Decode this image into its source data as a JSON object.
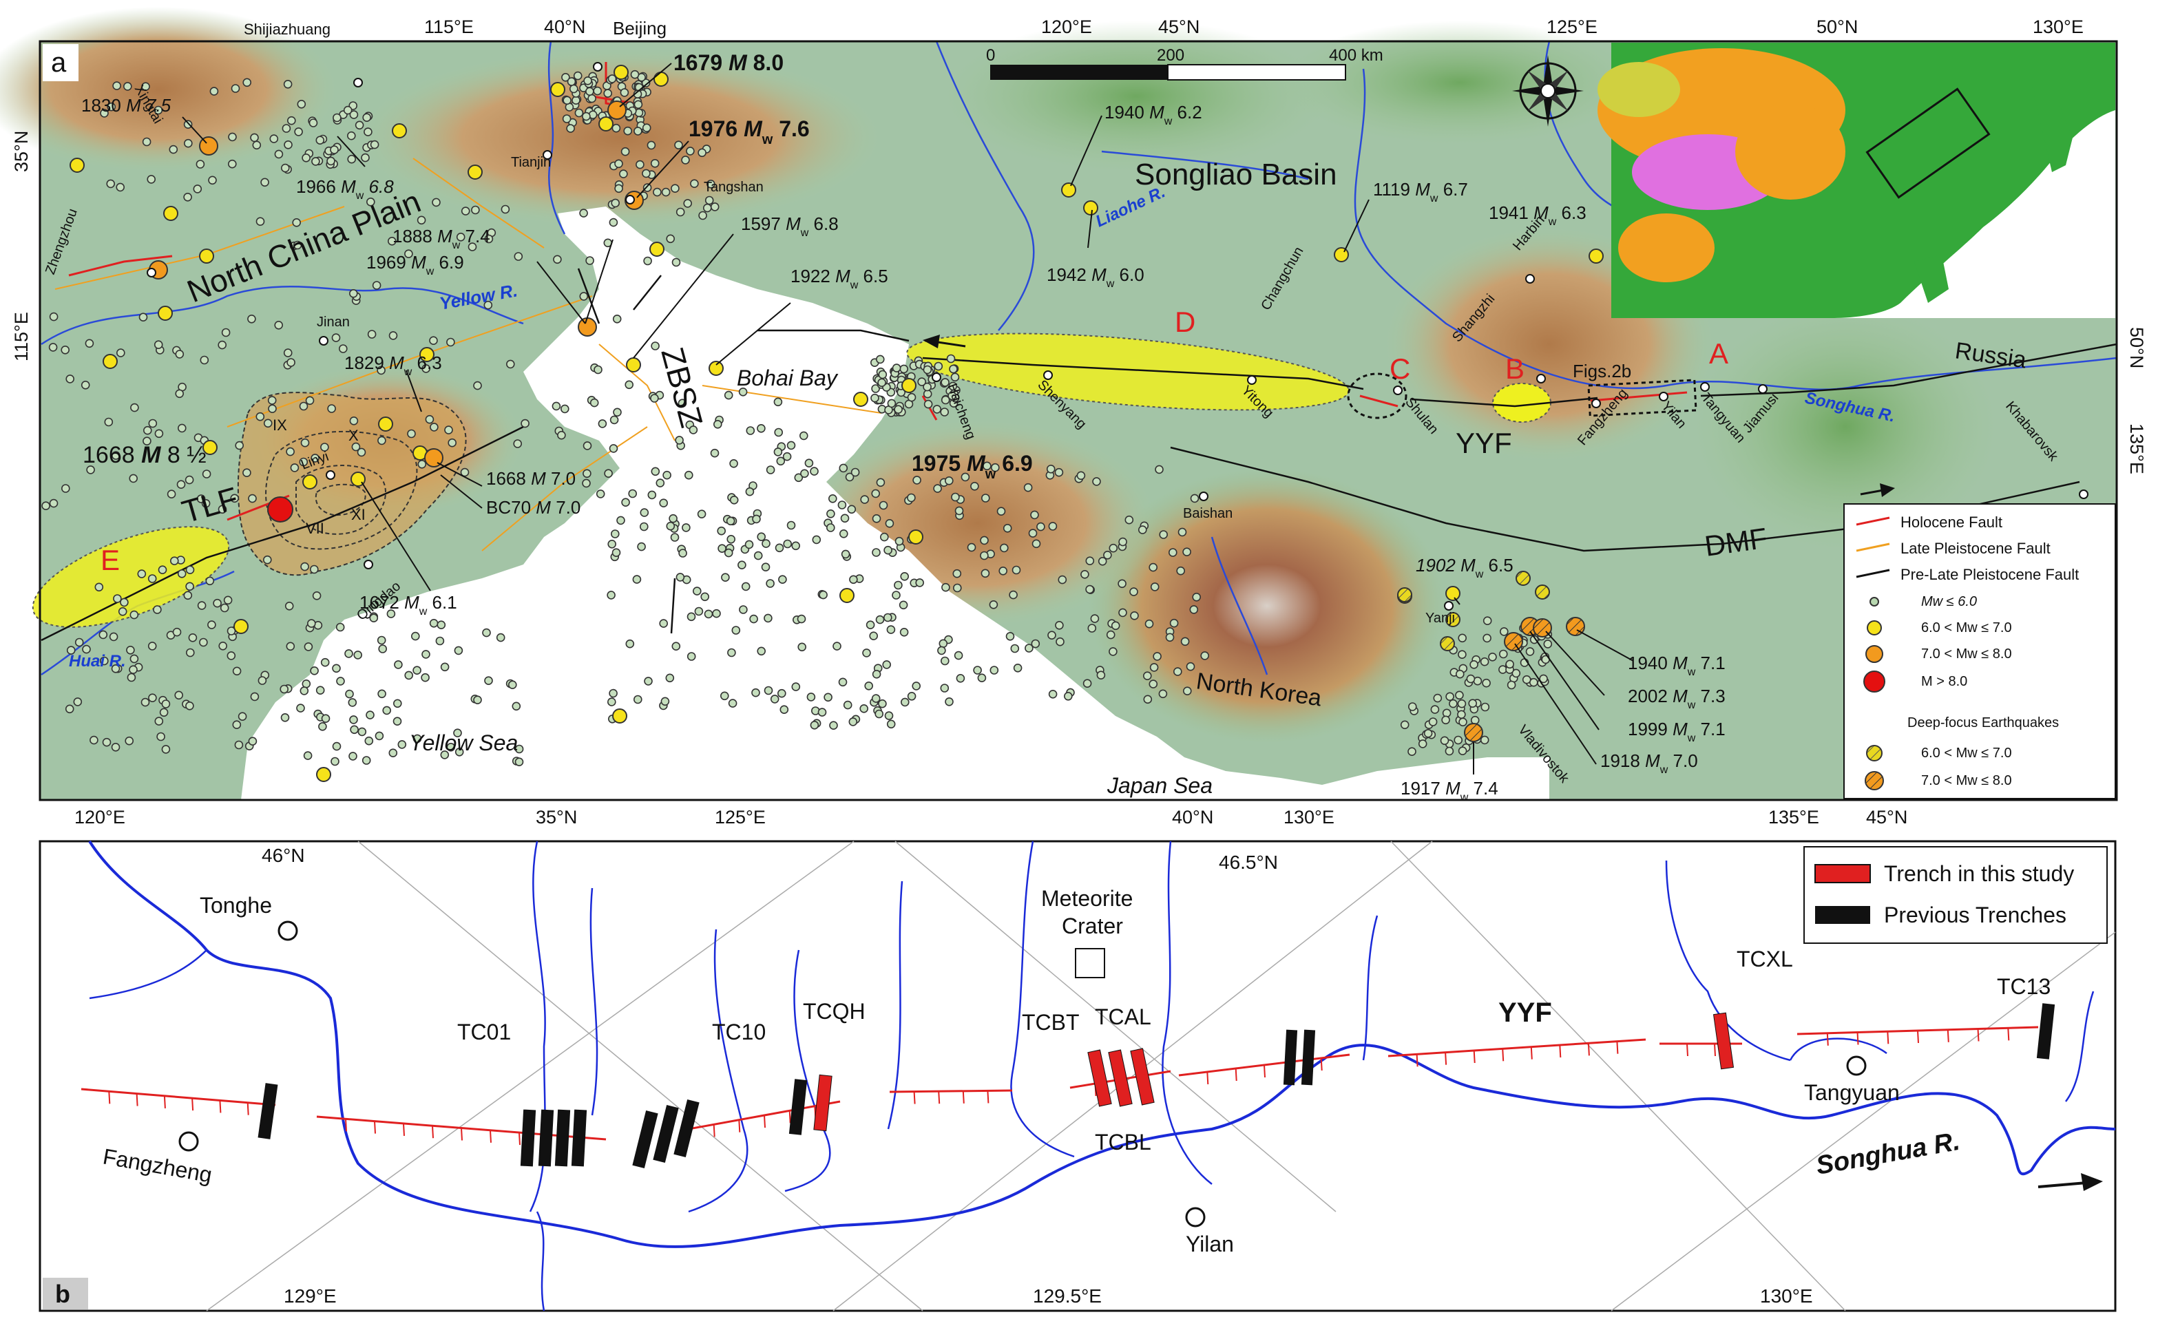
{
  "panel_a": {
    "panel_label": "a",
    "scale_bar": {
      "tick0": "0",
      "tick1": "200",
      "tick2": "400 km"
    },
    "top_ticks": [
      "115°E",
      "40°N",
      "120°E",
      "45°N",
      "125°E",
      "50°N",
      "130°E"
    ],
    "bottom_ticks": [
      "120°E",
      "35°N",
      "125°E",
      "40°N",
      "130°E",
      "135°E",
      "45°N"
    ],
    "left_ticks": [
      "35°N",
      "115°E"
    ],
    "right_ticks": [
      "50°N",
      "135°E"
    ],
    "cities": {
      "shijiazhuang": "Shijiazhuang",
      "beijing": "Beijing",
      "tianjin": "Tianjin",
      "tangshan": "Tangshan",
      "zhengzhou": "Zhengzhou",
      "jinan": "Jinan",
      "linyi": "Linyi",
      "qingdao": "Qingdao",
      "xingtai": "Xingtai",
      "haicheng": "Haicheng",
      "shenyang": "Shenyang",
      "yitong": "Yitong",
      "changchun": "Changchun",
      "harbin": "Harbin",
      "shangzhi": "Shangzhi",
      "shulan": "Shulan",
      "fangzheng": "Fangzheng",
      "yilan": "Yilan",
      "tangyuan": "Tangyuan",
      "jiamusi": "Jiamusi",
      "khabarovsk": "Khabarovsk",
      "baishan": "Baishan",
      "yanji": "Yanji",
      "vladivostok": "Vladivostok"
    },
    "regions": {
      "north_china_plain": "North China Plain",
      "songliao_basin": "Songliao Basin",
      "bohai_bay": "Bohai Bay",
      "yellow_sea": "Yellow Sea",
      "japan_sea": "Japan Sea",
      "north_korea": "North Korea",
      "russia": "Russia"
    },
    "rivers": {
      "yellow": "Yellow R.",
      "liaohe": "Liaohe R.",
      "songhua": "Songhua R.",
      "huai": "Huai R."
    },
    "faults": {
      "zbsz": "ZBSZ",
      "tlf": "TLF",
      "yyf": "YYF",
      "dmf": "DMF"
    },
    "segments": {
      "a": "A",
      "b": "B",
      "c": "C",
      "d": "D",
      "e": "E"
    },
    "figs_label": "Figs.2b",
    "isoseismals": [
      "IX",
      "X",
      "XI",
      "VII"
    ],
    "earthquakes": {
      "eq1679": {
        "year": "1679",
        "sym": "M",
        "mag": "8.0"
      },
      "eq1976": {
        "year": "1976",
        "sym": "M",
        "sub": "w",
        "mag": "7.6"
      },
      "eq1830": {
        "year": "1830",
        "sym": "M",
        "mag": "7.5"
      },
      "eq1966": {
        "year": "1966",
        "sym": "M",
        "sub": "w",
        "mag": "6.8"
      },
      "eq1888": {
        "year": "1888",
        "sym": "M",
        "sub": "w",
        "mag": "7.4"
      },
      "eq1969": {
        "year": "1969",
        "sym": "M",
        "sub": "w",
        "mag": "6.9"
      },
      "eq1597": {
        "year": "1597",
        "sym": "M",
        "sub": "w",
        "mag": "6.8"
      },
      "eq1922": {
        "year": "1922",
        "sym": "M",
        "sub": "w",
        "mag": "6.5"
      },
      "eq1940a": {
        "year": "1940",
        "sym": "M",
        "sub": "w",
        "mag": "6.2"
      },
      "eq1942": {
        "year": "1942",
        "sym": "M",
        "sub": "w",
        "mag": "6.0"
      },
      "eq1119": {
        "year": "1119",
        "sym": "M",
        "sub": "w",
        "mag": "6.7"
      },
      "eq1941": {
        "year": "1941",
        "sym": "M",
        "sub": "w",
        "mag": "6.3"
      },
      "eq1829": {
        "year": "1829",
        "sym": "M",
        "sub": "w",
        "mag": "6.3"
      },
      "eq1668a": {
        "year": "1668",
        "sym": "M",
        "mag": "8 ½"
      },
      "eq1668b": {
        "year": "1668",
        "sym": "M",
        "mag": "7.0"
      },
      "eqbc70": {
        "year": "BC70",
        "sym": "M",
        "mag": "7.0"
      },
      "eq1672": {
        "year": "1672",
        "sym": "M",
        "sub": "w",
        "mag": "6.1"
      },
      "eq1975": {
        "year": "1975",
        "sym": "M",
        "sub": "w",
        "mag": "6.9"
      },
      "eq1902": {
        "year": "1902",
        "sym": "M",
        "sub": "w",
        "mag": "6.5"
      },
      "eq1940b": {
        "year": "1940",
        "sym": "M",
        "sub": "w",
        "mag": "7.1"
      },
      "eq2002": {
        "year": "2002",
        "sym": "M",
        "sub": "w",
        "mag": "7.3"
      },
      "eq1999": {
        "year": "1999",
        "sym": "M",
        "sub": "w",
        "mag": "7.1"
      },
      "eq1918": {
        "year": "1918",
        "sym": "M",
        "sub": "w",
        "mag": "7.0"
      },
      "eq1917": {
        "year": "1917",
        "sym": "M",
        "sub": "w",
        "mag": "7.4"
      }
    },
    "legend": {
      "holocene": "Holocene Fault",
      "late_pleistocene": "Late Pleistocene Fault",
      "pre_late": "Pre-Late Pleistocene Fault",
      "mw1": "Mw ≤ 6.0",
      "mw2": "6.0 < Mw ≤ 7.0",
      "mw3": "7.0 < Mw ≤ 8.0",
      "mw4": "M > 8.0",
      "deep_title": "Deep-focus Earthquakes",
      "deep1": "6.0 < Mw ≤ 7.0",
      "deep2": "7.0 < Mw ≤ 8.0"
    },
    "colors": {
      "holocene": "#e02020",
      "late_pleistocene": "#f0a020",
      "pre_late": "#111111",
      "segment_fill": "#eef020",
      "mw_small": "#b8d8b0",
      "mw_yellow": "#f6e21a",
      "mw_orange": "#f29a1e",
      "mw_red": "#e41010"
    }
  },
  "panel_b": {
    "panel_label": "b",
    "ticks": {
      "n46": "46°N",
      "n465": "46.5°N",
      "e129": "129°E",
      "e1295": "129.5°E",
      "e130": "130°E"
    },
    "towns": {
      "tonghe": "Tonghe",
      "fangzheng": "Fangzheng",
      "yilan": "Yilan",
      "tangyuan": "Tangyuan"
    },
    "meteorite": {
      "line1": "Meteorite",
      "line2": "Crater"
    },
    "trenches": {
      "tc01": "TC01",
      "tc10": "TC10",
      "tcqh": "TCQH",
      "tcbt": "TCBT",
      "tcal": "TCAL",
      "tcbl": "TCBL",
      "tcxl": "TCXL",
      "tc13": "TC13"
    },
    "fault": "YYF",
    "river": "Songhua R.",
    "legend": {
      "this_study": "Trench in this study",
      "previous": "Previous Trenches"
    }
  }
}
